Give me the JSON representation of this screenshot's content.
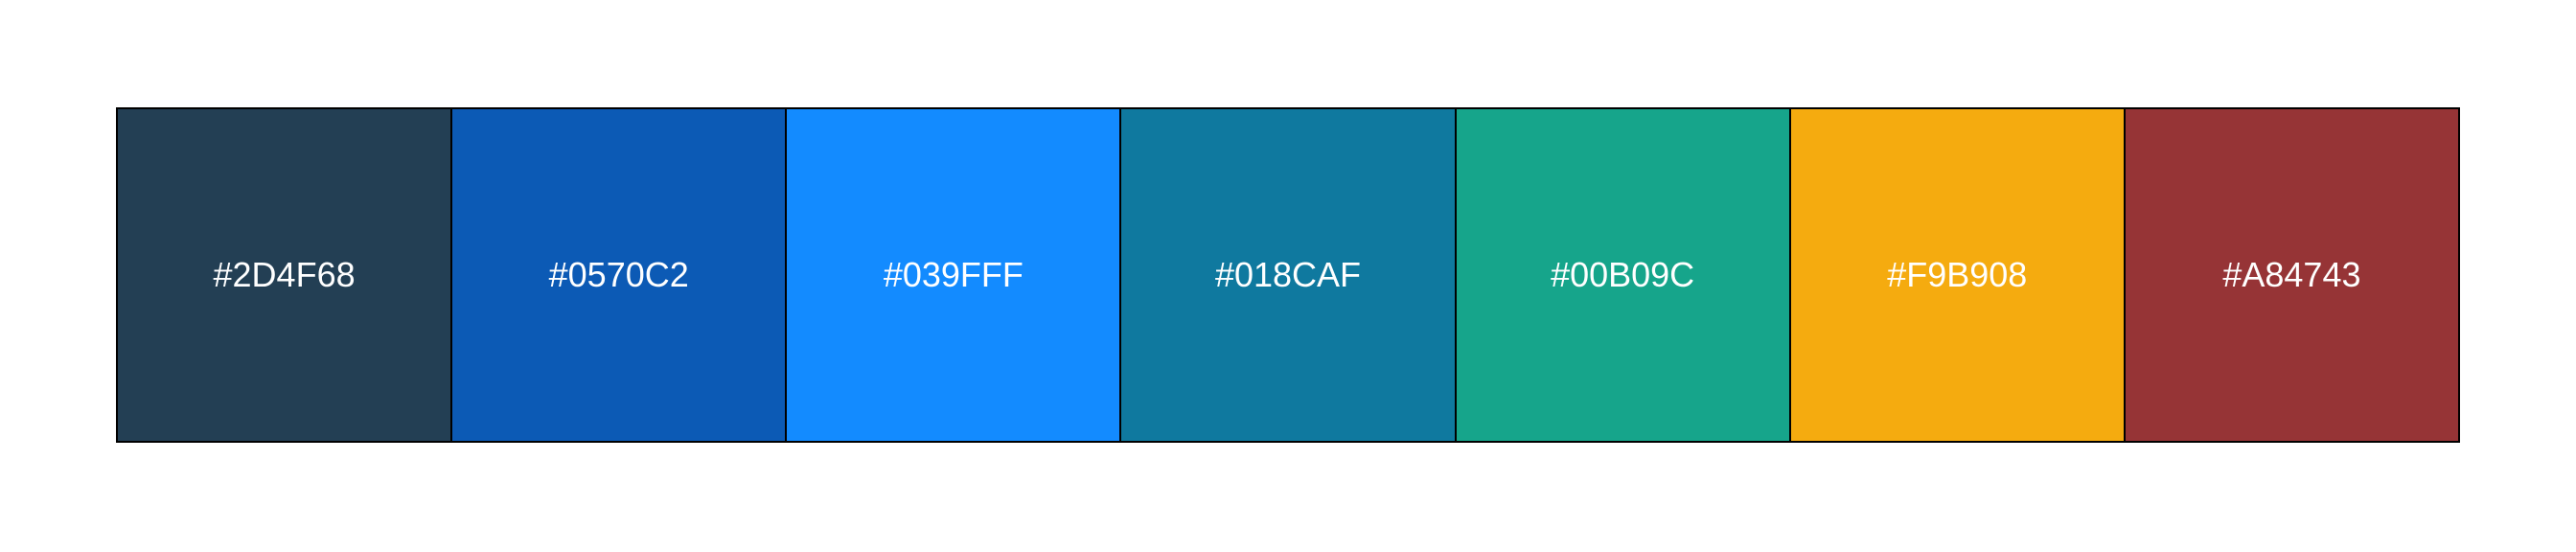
{
  "palette": {
    "swatches": [
      {
        "label": "#2D4F68",
        "color": "#233f54"
      },
      {
        "label": "#0570C2",
        "color": "#0c5ab5"
      },
      {
        "label": "#039FFF",
        "color": "#138bff"
      },
      {
        "label": "#018CAF",
        "color": "#0f799f"
      },
      {
        "label": "#00B09C",
        "color": "#16a58b"
      },
      {
        "label": "#F9B908",
        "color": "#f5ab0f"
      },
      {
        "label": "#A84743",
        "color": "#963436"
      }
    ]
  }
}
